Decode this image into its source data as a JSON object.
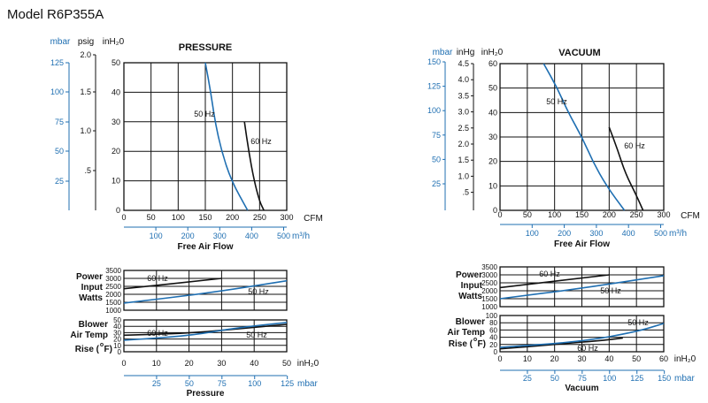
{
  "page": {
    "title": "Model R6P355A"
  },
  "colors": {
    "blue": "#1f6fb2",
    "black": "#111111",
    "grid": "#111111"
  },
  "chart_data": [
    {
      "id": "pressure",
      "type": "line",
      "title": "PRESSURE",
      "xlabel": "Free Air Flow",
      "x_unit": "CFM",
      "x2_unit": "m³/h",
      "xlim": [
        0,
        300
      ],
      "x_ticks": [
        "0",
        "50",
        "100",
        "150",
        "200",
        "250",
        "300"
      ],
      "x2_ticks": [
        "100",
        "200",
        "300",
        "400",
        "500"
      ],
      "ylim": [
        0,
        50
      ],
      "y_unit": "inH₂0",
      "y_ticks": [
        "0",
        "10",
        "20",
        "30",
        "40",
        "50"
      ],
      "psig_unit": "psig",
      "psig_ticks": [
        "2.0",
        "1.5",
        "1.0",
        ".5"
      ],
      "mbar_unit": "mbar",
      "mbar_ticks": [
        "125",
        "100",
        "75",
        "50",
        "25"
      ],
      "series": [
        {
          "name": "50 Hz",
          "color": "#1f6fb2",
          "points": [
            [
              150,
              50
            ],
            [
              160,
              40
            ],
            [
              168,
              30
            ],
            [
              180,
              20
            ],
            [
              198,
              10
            ],
            [
              228,
              0
            ]
          ]
        },
        {
          "name": "60 Hz",
          "color": "#111111",
          "points": [
            [
              222,
              30
            ],
            [
              230,
              20
            ],
            [
              240,
              10
            ],
            [
              250,
              3
            ],
            [
              258,
              0
            ]
          ]
        }
      ]
    },
    {
      "id": "vacuum",
      "type": "line",
      "title": "VACUUM",
      "xlabel": "Free Air Flow",
      "x_unit": "CFM",
      "x2_unit": "m³/h",
      "xlim": [
        0,
        300
      ],
      "x_ticks": [
        "0",
        "50",
        "100",
        "150",
        "200",
        "250",
        "300"
      ],
      "x2_ticks": [
        "100",
        "200",
        "300",
        "400",
        "500"
      ],
      "ylim": [
        0,
        60
      ],
      "y_unit": "inH₂0",
      "y_ticks": [
        "0",
        "10",
        "20",
        "30",
        "40",
        "50",
        "60"
      ],
      "inhg_unit": "inHg",
      "inhg_ticks": [
        "4.5",
        "4.0",
        "3.5",
        "3.0",
        "2.5",
        "2.0",
        "1.5",
        "1.0",
        ".5"
      ],
      "mbar_unit": "mbar",
      "mbar_ticks": [
        "150",
        "125",
        "100",
        "75",
        "50",
        "25"
      ],
      "series": [
        {
          "name": "50 Hz",
          "color": "#1f6fb2",
          "points": [
            [
              80,
              60
            ],
            [
              105,
              50
            ],
            [
              125,
              40
            ],
            [
              150,
              30
            ],
            [
              170,
              20
            ],
            [
              195,
              10
            ],
            [
              228,
              0
            ]
          ]
        },
        {
          "name": "60 Hz",
          "color": "#111111",
          "points": [
            [
              200,
              34
            ],
            [
              215,
              25
            ],
            [
              230,
              15
            ],
            [
              250,
              6
            ],
            [
              262,
              0
            ]
          ]
        }
      ]
    },
    {
      "id": "pressure-power",
      "type": "line",
      "label": "Power Input Watts",
      "xlim": [
        0,
        50
      ],
      "ylim": [
        1000,
        3500
      ],
      "y_ticks": [
        "3500",
        "3000",
        "2500",
        "2000",
        "1500",
        "1000"
      ],
      "series": [
        {
          "name": "60 Hz",
          "color": "#111111",
          "points": [
            [
              0,
              2350
            ],
            [
              30,
              3000
            ]
          ]
        },
        {
          "name": "50 Hz",
          "color": "#1f6fb2",
          "points": [
            [
              0,
              1450
            ],
            [
              25,
              2050
            ],
            [
              50,
              2850
            ]
          ]
        }
      ]
    },
    {
      "id": "pressure-temp",
      "type": "line",
      "label": "Blower Air Temp Rise (°F)",
      "xlim": [
        0,
        50
      ],
      "ylim": [
        0,
        50
      ],
      "y_ticks": [
        "50",
        "40",
        "30",
        "20",
        "10",
        "0"
      ],
      "x_ticks": [
        "0",
        "10",
        "20",
        "30",
        "40",
        "50"
      ],
      "x_unit": "inH₂0",
      "x2_ticks": [
        "25",
        "50",
        "75",
        "100",
        "125"
      ],
      "x2_unit": "mbar",
      "xlabel": "Pressure",
      "series": [
        {
          "name": "60 Hz",
          "color": "#111111",
          "points": [
            [
              0,
              26
            ],
            [
              20,
              29
            ],
            [
              35,
              36
            ],
            [
              50,
              43
            ]
          ]
        },
        {
          "name": "50 Hz",
          "color": "#1f6fb2",
          "points": [
            [
              0,
              18
            ],
            [
              20,
              25
            ],
            [
              35,
              38
            ],
            [
              50,
              46
            ]
          ]
        }
      ]
    },
    {
      "id": "vacuum-power",
      "type": "line",
      "label": "Power Input Watts",
      "xlim": [
        0,
        60
      ],
      "ylim": [
        1000,
        3500
      ],
      "y_ticks": [
        "3500",
        "3000",
        "2500",
        "2000",
        "1500",
        "1000"
      ],
      "series": [
        {
          "name": "60 Hz",
          "color": "#111111",
          "points": [
            [
              0,
              2200
            ],
            [
              40,
              3000
            ]
          ]
        },
        {
          "name": "50 Hz",
          "color": "#1f6fb2",
          "points": [
            [
              0,
              1500
            ],
            [
              30,
              2150
            ],
            [
              60,
              2950
            ]
          ]
        }
      ]
    },
    {
      "id": "vacuum-temp",
      "type": "line",
      "label": "Blower Air Temp Rise (°F)",
      "xlim": [
        0,
        60
      ],
      "ylim": [
        0,
        100
      ],
      "y_ticks": [
        "100",
        "80",
        "60",
        "40",
        "20",
        "0"
      ],
      "x_ticks": [
        "0",
        "10",
        "20",
        "30",
        "40",
        "50",
        "60"
      ],
      "x_unit": "inH₂0",
      "x2_ticks": [
        "25",
        "50",
        "75",
        "100",
        "125",
        "150"
      ],
      "x2_unit": "mbar",
      "xlabel": "Vacuum",
      "series": [
        {
          "name": "60 Hz",
          "color": "#111111",
          "points": [
            [
              0,
              8
            ],
            [
              20,
              20
            ],
            [
              40,
              33
            ],
            [
              45,
              38
            ]
          ]
        },
        {
          "name": "50 Hz",
          "color": "#1f6fb2",
          "points": [
            [
              0,
              12
            ],
            [
              30,
              28
            ],
            [
              50,
              55
            ],
            [
              60,
              78
            ]
          ]
        }
      ]
    }
  ],
  "labels": {
    "power_lines": [
      "Power",
      "Input",
      "Watts"
    ],
    "temp_lines": [
      "Blower",
      "Air Temp",
      "Rise (",
      "F)"
    ],
    "degree": "o"
  }
}
